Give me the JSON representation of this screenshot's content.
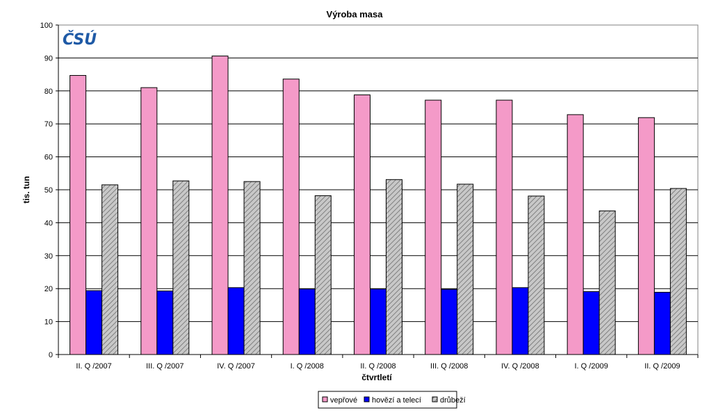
{
  "chart_data": {
    "type": "bar",
    "title": "Výroba masa",
    "xlabel": "čtvrtletí",
    "ylabel": "tis. tun",
    "ylim": [
      0,
      100
    ],
    "yticks": [
      0,
      10,
      20,
      30,
      40,
      50,
      60,
      70,
      80,
      90,
      100
    ],
    "grid": true,
    "legend_position": "bottom",
    "categories": [
      "II. Q /2007",
      "III. Q /2007",
      "IV. Q /2007",
      "I. Q /2008",
      "II. Q /2008",
      "III. Q /2008",
      "IV. Q /2008",
      "I. Q /2009",
      "II. Q /2009"
    ],
    "series": [
      {
        "name": "vepřové",
        "color": "#f49ac8",
        "pattern": "solid",
        "values": [
          84.7,
          81.0,
          90.6,
          83.6,
          78.8,
          77.2,
          77.2,
          72.8,
          71.9
        ]
      },
      {
        "name": "hovězí a telecí",
        "color": "#0000ff",
        "pattern": "solid",
        "values": [
          19.4,
          19.3,
          20.3,
          19.9,
          19.9,
          19.8,
          20.3,
          19.1,
          18.9
        ]
      },
      {
        "name": "drůbeží",
        "color": "#c0c0c0",
        "pattern": "diagonal-hatch",
        "values": [
          51.5,
          52.7,
          52.5,
          48.2,
          53.1,
          51.7,
          48.1,
          43.6,
          50.4
        ]
      }
    ]
  },
  "logo": {
    "text": "ČSÚ",
    "color": "#1f5aa6"
  }
}
